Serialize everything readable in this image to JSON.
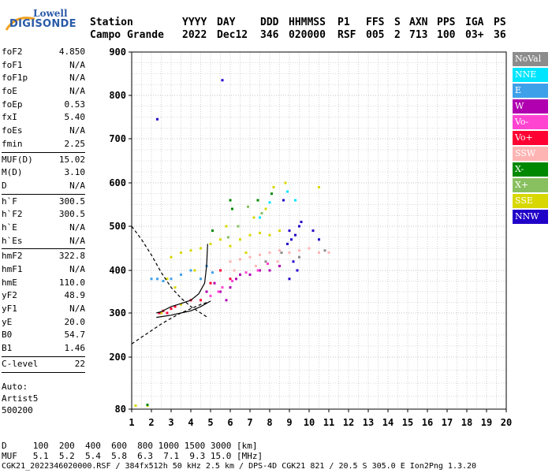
{
  "logo": {
    "line1": "Lowell",
    "line2": "DIGISONDE"
  },
  "header": {
    "labels": [
      "Station",
      "YYYY",
      "DAY",
      "DDD",
      "HHMMSS",
      "P1",
      "FFS",
      "S",
      "AXN",
      "PPS",
      "IGA",
      "PS"
    ],
    "values": [
      "Campo Grande",
      "2022",
      "Dec12",
      "346",
      "020000",
      "RSF",
      "005",
      "2",
      "713",
      "100",
      "03+",
      "36"
    ]
  },
  "params": {
    "group1": [
      {
        "k": "foF2",
        "v": "4.850"
      },
      {
        "k": "foF1",
        "v": "N/A"
      },
      {
        "k": "foF1p",
        "v": "N/A"
      },
      {
        "k": "foE",
        "v": "N/A"
      },
      {
        "k": "foEp",
        "v": "0.53"
      },
      {
        "k": "fxI",
        "v": "5.40"
      },
      {
        "k": "foEs",
        "v": "N/A"
      },
      {
        "k": "fmin",
        "v": "2.25"
      }
    ],
    "group2": [
      {
        "k": "MUF(D)",
        "v": "15.02"
      },
      {
        "k": "M(D)",
        "v": "3.10"
      },
      {
        "k": "D",
        "v": "N/A"
      }
    ],
    "group3": [
      {
        "k": "h`F",
        "v": "300.5"
      },
      {
        "k": "h`F2",
        "v": "300.5"
      },
      {
        "k": "h`E",
        "v": "N/A"
      },
      {
        "k": "h`Es",
        "v": "N/A"
      }
    ],
    "group4": [
      {
        "k": "hmF2",
        "v": "322.8"
      },
      {
        "k": "hmF1",
        "v": "N/A"
      },
      {
        "k": "hmE",
        "v": "110.0"
      },
      {
        "k": "yF2",
        "v": "48.9"
      },
      {
        "k": "yF1",
        "v": "N/A"
      },
      {
        "k": "yE",
        "v": "20.0"
      },
      {
        "k": "B0",
        "v": "54.7"
      },
      {
        "k": "B1",
        "v": "1.46"
      }
    ],
    "group5": [
      {
        "k": "C-level",
        "v": "22"
      }
    ],
    "auto": [
      "Auto:",
      "Artist5",
      "500200"
    ]
  },
  "legend": [
    {
      "label": "NoVal",
      "color": "#8c8c8c"
    },
    {
      "label": "NNE",
      "color": "#00e5ff"
    },
    {
      "label": "E",
      "color": "#3fa0ea"
    },
    {
      "label": "W",
      "color": "#b000b0"
    },
    {
      "label": "Vo-",
      "color": "#ff44d2"
    },
    {
      "label": "Vo+",
      "color": "#ff0033"
    },
    {
      "label": "SSW",
      "color": "#ffb4b4"
    },
    {
      "label": "X-",
      "color": "#008800"
    },
    {
      "label": "X+",
      "color": "#88c060"
    },
    {
      "label": "SSE",
      "color": "#d8d800"
    },
    {
      "label": "NNW",
      "color": "#2000c8"
    }
  ],
  "bottom": {
    "line1": "D     100  200  400  600  800 1000 1500 3000 [km]",
    "line2": "MUF   5.1  5.2  5.4  5.8  6.3  7.1  9.3 15.0 [MHz]",
    "line3": "CGK21_2022346020000.RSF / 384fx512h 50 kHz 2.5 km / DPS-4D CGK21 821 / 20.5 S 305.0 E Ion2Png 1.3.20"
  },
  "chart_data": {
    "type": "scatter",
    "xlim": [
      1,
      20
    ],
    "ylim": [
      80,
      900
    ],
    "x_ticks": [
      1,
      2,
      3,
      4,
      5,
      6,
      7,
      8,
      9,
      10,
      11,
      12,
      13,
      14,
      15,
      16,
      17,
      18,
      19,
      20
    ],
    "y_ticks": [
      80,
      200,
      300,
      400,
      500,
      600,
      700,
      800,
      900
    ],
    "grid": true,
    "series": [
      {
        "color": "#2000c8",
        "points": [
          [
            9.0,
            490
          ],
          [
            9.1,
            470
          ],
          [
            9.3,
            480
          ],
          [
            8.9,
            460
          ],
          [
            9.2,
            420
          ],
          [
            9.4,
            400
          ],
          [
            9.0,
            380
          ],
          [
            10.2,
            490
          ],
          [
            10.5,
            470
          ],
          [
            10.0,
            450
          ],
          [
            9.6,
            510
          ],
          [
            5.6,
            835
          ],
          [
            2.3,
            745
          ],
          [
            8.7,
            560
          ],
          [
            9.5,
            500
          ]
        ]
      },
      {
        "color": "#d8d800",
        "points": [
          [
            3.0,
            430
          ],
          [
            3.5,
            440
          ],
          [
            4.0,
            445
          ],
          [
            4.5,
            450
          ],
          [
            5.0,
            460
          ],
          [
            5.5,
            470
          ],
          [
            6.0,
            455
          ],
          [
            6.5,
            470
          ],
          [
            7.0,
            480
          ],
          [
            7.5,
            485
          ],
          [
            8.0,
            480
          ],
          [
            8.5,
            490
          ],
          [
            7.2,
            520
          ],
          [
            7.8,
            540
          ],
          [
            8.2,
            590
          ],
          [
            8.8,
            600
          ],
          [
            2.5,
            300
          ],
          [
            3.0,
            310
          ],
          [
            3.5,
            320
          ],
          [
            2.8,
            380
          ],
          [
            3.2,
            360
          ],
          [
            4.2,
            400
          ],
          [
            1.2,
            88
          ],
          [
            1.8,
            88
          ],
          [
            10.5,
            590
          ],
          [
            6.8,
            440
          ],
          [
            5.8,
            500
          ]
        ]
      },
      {
        "color": "#ffb4b4",
        "points": [
          [
            6.0,
            420
          ],
          [
            6.5,
            425
          ],
          [
            7.0,
            430
          ],
          [
            7.5,
            435
          ],
          [
            8.0,
            440
          ],
          [
            8.5,
            445
          ],
          [
            9.0,
            440
          ],
          [
            9.5,
            445
          ],
          [
            10.0,
            450
          ],
          [
            10.5,
            440
          ],
          [
            11.0,
            440
          ],
          [
            6.2,
            400
          ],
          [
            7.3,
            410
          ],
          [
            8.4,
            420
          ]
        ]
      },
      {
        "color": "#b000b0",
        "points": [
          [
            5.5,
            350
          ],
          [
            6.0,
            360
          ],
          [
            6.3,
            380
          ],
          [
            6.5,
            390
          ],
          [
            7.0,
            390
          ],
          [
            7.5,
            400
          ],
          [
            8.0,
            400
          ],
          [
            8.5,
            410
          ],
          [
            5.8,
            330
          ],
          [
            4.8,
            350
          ],
          [
            5.2,
            370
          ]
        ]
      },
      {
        "color": "#ff0033",
        "points": [
          [
            2.4,
            300
          ],
          [
            2.6,
            305
          ],
          [
            2.8,
            300
          ],
          [
            3.0,
            310
          ],
          [
            3.2,
            315
          ],
          [
            4.0,
            330
          ],
          [
            4.5,
            330
          ],
          [
            5.0,
            370
          ],
          [
            5.5,
            400
          ],
          [
            6.0,
            380
          ]
        ]
      },
      {
        "color": "#ff44d2",
        "points": [
          [
            5.0,
            340
          ],
          [
            5.4,
            350
          ],
          [
            6.1,
            375
          ],
          [
            6.8,
            395
          ],
          [
            7.4,
            400
          ],
          [
            7.9,
            415
          ],
          [
            5.6,
            360
          ]
        ]
      },
      {
        "color": "#3fa0ea",
        "points": [
          [
            2.0,
            380
          ],
          [
            2.3,
            380
          ],
          [
            2.6,
            375
          ],
          [
            3.0,
            380
          ],
          [
            3.5,
            390
          ],
          [
            4.5,
            380
          ],
          [
            4.8,
            410
          ],
          [
            5.1,
            395
          ],
          [
            4.0,
            400
          ]
        ]
      },
      {
        "color": "#00e5ff",
        "points": [
          [
            8.0,
            555
          ],
          [
            8.9,
            580
          ],
          [
            9.3,
            560
          ],
          [
            7.5,
            520
          ]
        ]
      },
      {
        "color": "#008800",
        "points": [
          [
            6.0,
            560
          ],
          [
            6.1,
            540
          ],
          [
            7.4,
            560
          ],
          [
            8.1,
            575
          ],
          [
            1.8,
            90
          ],
          [
            5.1,
            490
          ]
        ]
      },
      {
        "color": "#88c060",
        "points": [
          [
            6.4,
            500
          ],
          [
            7.6,
            530
          ],
          [
            6.9,
            545
          ],
          [
            5.9,
            475
          ]
        ]
      },
      {
        "color": "#8c8c8c",
        "points": [
          [
            8.6,
            440
          ],
          [
            9.5,
            430
          ],
          [
            10.8,
            445
          ],
          [
            7.8,
            420
          ]
        ]
      }
    ],
    "curves": [
      {
        "style": "dashed",
        "points": [
          [
            1.0,
            500
          ],
          [
            1.5,
            470
          ],
          [
            2.0,
            435
          ],
          [
            2.5,
            395
          ],
          [
            3.0,
            360
          ],
          [
            3.5,
            335
          ],
          [
            4.0,
            315
          ],
          [
            4.5,
            300
          ],
          [
            4.85,
            290
          ]
        ]
      },
      {
        "style": "dashed",
        "points": [
          [
            1.0,
            230
          ],
          [
            1.5,
            245
          ],
          [
            2.0,
            260
          ],
          [
            2.5,
            275
          ],
          [
            3.0,
            288
          ],
          [
            3.5,
            300
          ],
          [
            4.0,
            310
          ],
          [
            4.5,
            320
          ],
          [
            4.85,
            325
          ]
        ]
      },
      {
        "style": "solid",
        "points": [
          [
            2.25,
            300
          ],
          [
            2.5,
            303
          ],
          [
            3.0,
            315
          ],
          [
            3.5,
            322
          ],
          [
            4.0,
            330
          ],
          [
            4.4,
            345
          ],
          [
            4.7,
            370
          ],
          [
            4.8,
            410
          ],
          [
            4.85,
            460
          ]
        ]
      },
      {
        "style": "solid",
        "points": [
          [
            2.25,
            290
          ],
          [
            3.0,
            295
          ],
          [
            3.5,
            300
          ],
          [
            4.0,
            305
          ],
          [
            4.5,
            315
          ],
          [
            5.0,
            328
          ]
        ]
      }
    ]
  }
}
